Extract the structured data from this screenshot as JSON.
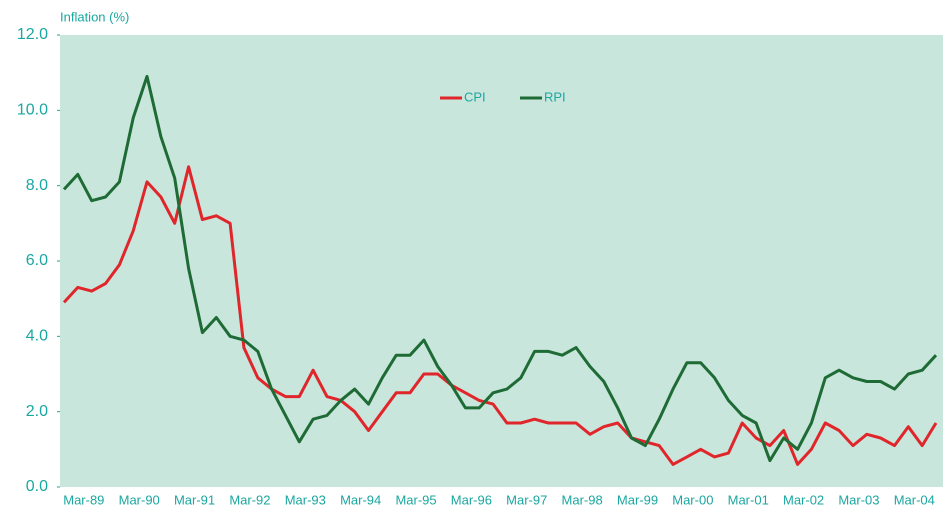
{
  "chart_data": {
    "type": "line",
    "title": "Inflation (%)",
    "categories": [
      null,
      "Mar-89",
      null,
      null,
      null,
      "Mar-90",
      null,
      null,
      null,
      "Mar-91",
      null,
      null,
      null,
      "Mar-92",
      null,
      null,
      null,
      "Mar-93",
      null,
      null,
      null,
      "Mar-94",
      null,
      null,
      null,
      "Mar-95",
      null,
      null,
      null,
      "Mar-96",
      null,
      null,
      null,
      "Mar-97",
      null,
      null,
      null,
      "Mar-98",
      null,
      null,
      null,
      "Mar-99",
      null,
      null,
      null,
      "Mar-00",
      null,
      null,
      null,
      "Mar-01",
      null,
      null,
      null,
      "Mar-02",
      null,
      null,
      null,
      "Mar-03",
      null,
      null,
      null,
      "Mar-04",
      null,
      null
    ],
    "series": [
      {
        "name": "CPI",
        "color": "#e0262b",
        "values": [
          4.9,
          5.3,
          5.2,
          5.4,
          5.9,
          6.8,
          8.1,
          7.7,
          7.0,
          8.5,
          7.1,
          7.2,
          7.0,
          3.7,
          2.9,
          2.6,
          2.4,
          2.4,
          3.1,
          2.4,
          2.3,
          2.0,
          1.5,
          2.0,
          2.5,
          2.5,
          3.0,
          3.0,
          2.7,
          2.5,
          2.3,
          2.2,
          1.7,
          1.7,
          1.8,
          1.7,
          1.7,
          1.7,
          1.4,
          1.6,
          1.7,
          1.3,
          1.2,
          1.1,
          0.6,
          0.8,
          1.0,
          0.8,
          0.9,
          1.7,
          1.3,
          1.1,
          1.5,
          0.6,
          1.0,
          1.7,
          1.5,
          1.1,
          1.4,
          1.3,
          1.1,
          1.6,
          1.1,
          1.7
        ]
      },
      {
        "name": "RPI",
        "color": "#1e6b35",
        "values": [
          7.9,
          8.3,
          7.6,
          7.7,
          8.1,
          9.8,
          10.9,
          9.3,
          8.2,
          5.8,
          4.1,
          4.5,
          4.0,
          3.9,
          3.6,
          2.6,
          1.9,
          1.2,
          1.8,
          1.9,
          2.3,
          2.6,
          2.2,
          2.9,
          3.5,
          3.5,
          3.9,
          3.2,
          2.7,
          2.1,
          2.1,
          2.5,
          2.6,
          2.9,
          3.6,
          3.6,
          3.5,
          3.7,
          3.2,
          2.8,
          2.1,
          1.3,
          1.1,
          1.8,
          2.6,
          3.3,
          3.3,
          2.9,
          2.3,
          1.9,
          1.7,
          0.7,
          1.3,
          1.0,
          1.7,
          2.9,
          3.1,
          2.9,
          2.8,
          2.8,
          2.6,
          3.0,
          3.1,
          3.5
        ]
      }
    ],
    "ylim": [
      0,
      12
    ],
    "yticks": [
      {
        "value": 0,
        "label": "0.0"
      },
      {
        "value": 2,
        "label": "2.0"
      },
      {
        "value": 4,
        "label": "4.0"
      },
      {
        "value": 6,
        "label": "6.0"
      },
      {
        "value": 8,
        "label": "8.0"
      },
      {
        "value": 10,
        "label": "10.0"
      },
      {
        "value": 12,
        "label": "12.0"
      }
    ],
    "plot_background": "#c9e6dc"
  }
}
